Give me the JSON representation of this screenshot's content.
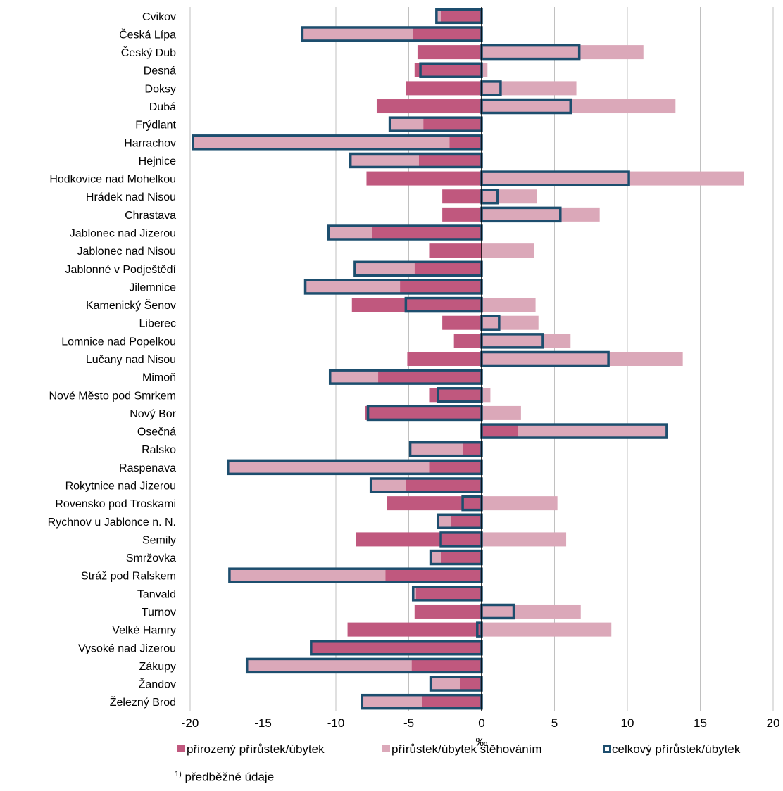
{
  "chart_data": {
    "type": "bar",
    "orientation": "horizontal",
    "xlabel": "‰",
    "xlim": [
      -20,
      20
    ],
    "xticks": [
      -20,
      -15,
      -10,
      -5,
      0,
      5,
      10,
      15,
      20
    ],
    "grid": true,
    "legend_position": "bottom",
    "categories": [
      "Cvikov",
      "Česká Lípa",
      "Český Dub",
      "Desná",
      "Doksy",
      "Dubá",
      "Frýdlant",
      "Harrachov",
      "Hejnice",
      "Hodkovice nad Mohelkou",
      "Hrádek nad Nisou",
      "Chrastava",
      "Jablonec nad Jizerou",
      "Jablonec nad Nisou",
      "Jablonné v Podještědí",
      "Jilemnice",
      "Kamenický Šenov",
      "Liberec",
      "Lomnice nad Popelkou",
      "Lučany nad Nisou",
      "Mimoň",
      "Nové Město pod Smrkem",
      "Nový Bor",
      "Osečná",
      "Ralsko",
      "Raspenava",
      "Rokytnice nad Jizerou",
      "Rovensko pod Troskami",
      "Rychnov u Jablonce n. N.",
      "Semily",
      "Smržovka",
      "Stráž pod Ralskem",
      "Tanvald",
      "Turnov",
      "Velké Hamry",
      "Vysoké nad Jizerou",
      "Zákupy",
      "Žandov",
      "Železný Brod"
    ],
    "series": [
      {
        "name": "přirozený přírůstek/úbytek",
        "color": "#c0587e",
        "values": [
          -2.8,
          -4.7,
          -4.4,
          -4.6,
          -5.2,
          -7.2,
          -4.0,
          -2.2,
          -4.3,
          -7.9,
          -2.7,
          -2.7,
          -7.5,
          -3.6,
          -4.6,
          -5.6,
          -8.9,
          -2.7,
          -1.9,
          -5.1,
          -7.1,
          -3.6,
          -8.0,
          2.5,
          -1.3,
          -3.6,
          -5.2,
          -6.5,
          -2.1,
          -8.6,
          -2.8,
          -6.6,
          -4.5,
          -4.6,
          -9.2,
          -11.7,
          -4.8,
          -1.5,
          -4.1
        ]
      },
      {
        "name": "přírůstek/úbytek stěhováním",
        "color": "#dba8b9",
        "values": [
          -0.3,
          -7.6,
          11.1,
          0.4,
          6.5,
          13.3,
          -2.3,
          -17.6,
          -4.7,
          18.0,
          3.8,
          8.1,
          -3.0,
          3.6,
          -4.1,
          -6.5,
          3.7,
          3.9,
          6.1,
          13.8,
          -3.3,
          0.6,
          2.7,
          10.2,
          -3.6,
          -13.8,
          -2.4,
          5.2,
          -0.9,
          5.8,
          -0.7,
          -10.7,
          -0.2,
          6.8,
          8.9,
          0.0,
          -11.3,
          -2.0,
          -4.1
        ]
      },
      {
        "name": "celkový přírůstek/úbytek",
        "color": "#1d4e6e",
        "values": [
          -3.1,
          -12.3,
          6.7,
          -4.2,
          1.3,
          6.1,
          -6.3,
          -19.8,
          -9.0,
          10.1,
          1.1,
          5.4,
          -10.5,
          0.0,
          -8.7,
          -12.1,
          -5.2,
          1.2,
          4.2,
          8.7,
          -10.4,
          -3.0,
          -7.8,
          12.7,
          -4.9,
          -17.4,
          -7.6,
          -1.3,
          -3.0,
          -2.8,
          -3.5,
          -17.3,
          -4.7,
          2.2,
          -0.3,
          -11.7,
          -16.1,
          -3.5,
          -8.2
        ]
      }
    ],
    "footnote_sup": "1)",
    "footnote_text": " předběžné údaje"
  }
}
